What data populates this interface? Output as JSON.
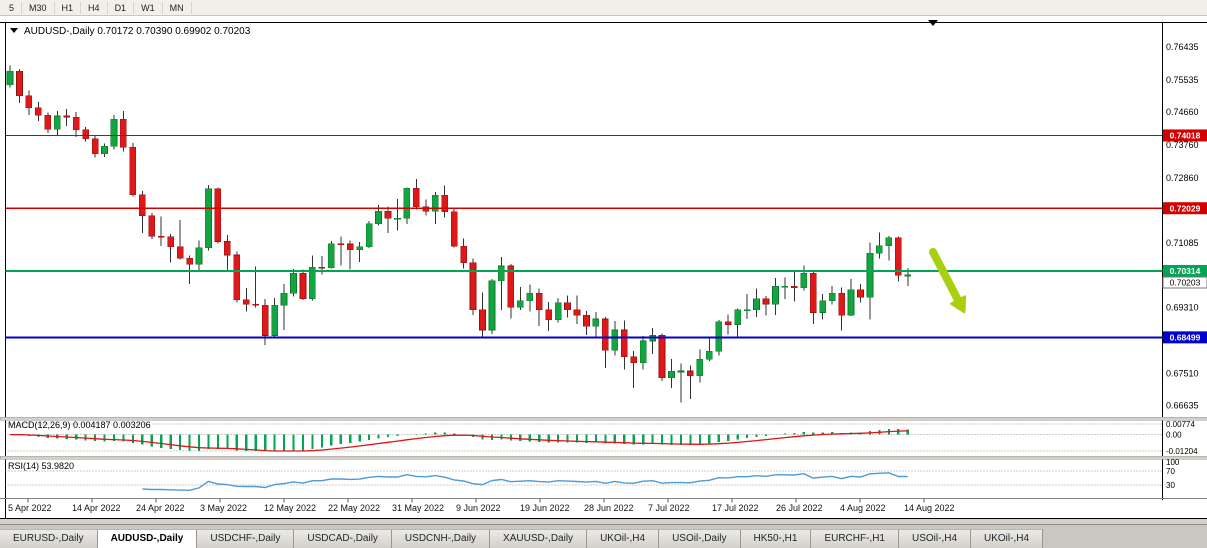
{
  "toolbar": {
    "timeframes": [
      "5",
      "M30",
      "H1",
      "H4",
      "D1",
      "W1",
      "MN"
    ]
  },
  "chart": {
    "title_display": "AUDUSD-,Daily 0.70172 0.70390 0.69902 0.70203",
    "symbol": "AUDUSD-,Daily",
    "open": "0.70172",
    "high": "0.70390",
    "low": "0.69902",
    "close": "0.70203"
  },
  "price_axis": {
    "labels": [
      "0.76435",
      "0.75535",
      "0.74660",
      "0.73760",
      "0.72860",
      "0.71085",
      "0.69310",
      "0.67510",
      "0.66635"
    ]
  },
  "hlines": [
    {
      "price": 0.74018,
      "label": "0.74018",
      "color": "#d40000",
      "width": 1.2
    },
    {
      "price": 0.72029,
      "label": "0.72029",
      "color": "#d40000",
      "width": 1.2
    },
    {
      "price": 0.70314,
      "label": "0.70314",
      "color": "#00a651",
      "width": 2.2
    },
    {
      "price": 0.68499,
      "label": "0.68499",
      "color": "#0000cc",
      "width": 2.2
    }
  ],
  "current_price": {
    "label": "0.70203",
    "price": 0.70203
  },
  "macd_panel": {
    "label_display": "MACD(12,26,9) 0.004187 0.003206",
    "name": "MACD",
    "params": "12,26,9",
    "macd_value": "0.004187",
    "signal_value": "0.003206",
    "axis_labels": [
      "0.00774",
      "0.00",
      "-0.01204"
    ],
    "scale_max": 0.00774,
    "scale_min": -0.01204,
    "histogram_color": "#00a651",
    "signal_color": "#e01515"
  },
  "rsi_panel": {
    "label_display": "RSI(14) 53.9820",
    "name": "RSI",
    "params": "14",
    "value": "53.9820",
    "axis_labels": [
      "100",
      "70",
      "30"
    ],
    "levels": [
      70,
      30
    ],
    "scale": [
      0,
      100
    ],
    "line_color": "#4f9bd5"
  },
  "annotations": {
    "arrow": {
      "type": "arrow",
      "direction": "down-right",
      "color": "#a8cf10"
    }
  },
  "tabs": {
    "items": [
      {
        "label": "EURUSD-,Daily",
        "active": false
      },
      {
        "label": "AUDUSD-,Daily",
        "active": true
      },
      {
        "label": "USDCHF-,Daily",
        "active": false
      },
      {
        "label": "USDCAD-,Daily",
        "active": false
      },
      {
        "label": "USDCNH-,Daily",
        "active": false
      },
      {
        "label": "XAUUSD-,Daily",
        "active": false
      },
      {
        "label": "UKOil-,H4",
        "active": false
      },
      {
        "label": "USOil-,Daily",
        "active": false
      },
      {
        "label": "HK50-,H1",
        "active": false
      },
      {
        "label": "EURCHF-,H1",
        "active": false
      },
      {
        "label": "USOil-,H4",
        "active": false
      },
      {
        "label": "UKOil-,H4",
        "active": false
      }
    ]
  },
  "chart_data": {
    "type": "candlestick",
    "symbol": "AUDUSD",
    "timeframe": "Daily",
    "ylim": [
      0.6635,
      0.769
    ],
    "x_labels": [
      "5 Apr 2022",
      "14 Apr 2022",
      "24 Apr 2022",
      "3 May 2022",
      "12 May 2022",
      "22 May 2022",
      "31 May 2022",
      "9 Jun 2022",
      "19 Jun 2022",
      "28 Jun 2022",
      "7 Jul 2022",
      "17 Jul 2022",
      "26 Jul 2022",
      "4 Aug 2022",
      "14 Aug 2022"
    ],
    "candles": [
      [
        0.754,
        0.7593,
        0.7533,
        0.7577
      ],
      [
        0.7577,
        0.7584,
        0.749,
        0.751
      ],
      [
        0.751,
        0.7524,
        0.7458,
        0.7478
      ],
      [
        0.7478,
        0.7493,
        0.7441,
        0.7457
      ],
      [
        0.7457,
        0.7464,
        0.7409,
        0.7419
      ],
      [
        0.7419,
        0.7469,
        0.74,
        0.7455
      ],
      [
        0.7455,
        0.7474,
        0.7427,
        0.7452
      ],
      [
        0.7452,
        0.7466,
        0.7398,
        0.7417
      ],
      [
        0.7417,
        0.7425,
        0.7385,
        0.7393
      ],
      [
        0.7393,
        0.74,
        0.7341,
        0.7352
      ],
      [
        0.7352,
        0.738,
        0.7343,
        0.7372
      ],
      [
        0.7372,
        0.7458,
        0.7364,
        0.7446
      ],
      [
        0.7446,
        0.7469,
        0.7358,
        0.7369
      ],
      [
        0.7369,
        0.7381,
        0.7235,
        0.724
      ],
      [
        0.724,
        0.725,
        0.7135,
        0.7182
      ],
      [
        0.7182,
        0.719,
        0.7119,
        0.7126
      ],
      [
        0.7126,
        0.718,
        0.71,
        0.7125
      ],
      [
        0.7125,
        0.7132,
        0.7055,
        0.7098
      ],
      [
        0.7098,
        0.7171,
        0.7063,
        0.7066
      ],
      [
        0.7066,
        0.7074,
        0.6996,
        0.705
      ],
      [
        0.705,
        0.7115,
        0.7029,
        0.7095
      ],
      [
        0.7095,
        0.7266,
        0.7087,
        0.7256
      ],
      [
        0.7256,
        0.7259,
        0.7106,
        0.7112
      ],
      [
        0.7112,
        0.713,
        0.7033,
        0.7075
      ],
      [
        0.7075,
        0.7084,
        0.6945,
        0.6953
      ],
      [
        0.6953,
        0.6985,
        0.692,
        0.694
      ],
      [
        0.694,
        0.7043,
        0.6931,
        0.6938
      ],
      [
        0.6938,
        0.6955,
        0.6829,
        0.6855
      ],
      [
        0.6855,
        0.6958,
        0.685,
        0.6938
      ],
      [
        0.6938,
        0.6996,
        0.687,
        0.697
      ],
      [
        0.697,
        0.7037,
        0.6962,
        0.7025
      ],
      [
        0.7025,
        0.7036,
        0.6952,
        0.6955
      ],
      [
        0.6955,
        0.7073,
        0.695,
        0.7042
      ],
      [
        0.7042,
        0.7072,
        0.7022,
        0.704
      ],
      [
        0.704,
        0.7113,
        0.7038,
        0.7106
      ],
      [
        0.7106,
        0.7126,
        0.7046,
        0.7105
      ],
      [
        0.7105,
        0.7115,
        0.7036,
        0.7089
      ],
      [
        0.7089,
        0.711,
        0.7056,
        0.7098
      ],
      [
        0.7098,
        0.7168,
        0.7094,
        0.716
      ],
      [
        0.716,
        0.7212,
        0.7155,
        0.7195
      ],
      [
        0.7195,
        0.7207,
        0.7135,
        0.7175
      ],
      [
        0.7175,
        0.7228,
        0.7142,
        0.7175
      ],
      [
        0.7175,
        0.7259,
        0.716,
        0.7257
      ],
      [
        0.7257,
        0.7283,
        0.72,
        0.7207
      ],
      [
        0.7207,
        0.7227,
        0.7183,
        0.7195
      ],
      [
        0.7195,
        0.7247,
        0.716,
        0.7238
      ],
      [
        0.7238,
        0.7265,
        0.7178,
        0.7193
      ],
      [
        0.7193,
        0.7205,
        0.7096,
        0.7099
      ],
      [
        0.7099,
        0.712,
        0.7038,
        0.7054
      ],
      [
        0.7054,
        0.7065,
        0.6911,
        0.6925
      ],
      [
        0.6925,
        0.6972,
        0.685,
        0.687
      ],
      [
        0.687,
        0.701,
        0.6859,
        0.7005
      ],
      [
        0.7005,
        0.7069,
        0.6925,
        0.7045
      ],
      [
        0.7045,
        0.705,
        0.6901,
        0.6932
      ],
      [
        0.6932,
        0.6988,
        0.6925,
        0.695
      ],
      [
        0.695,
        0.6995,
        0.6921,
        0.697
      ],
      [
        0.697,
        0.6984,
        0.6881,
        0.6925
      ],
      [
        0.6925,
        0.6947,
        0.6867,
        0.6898
      ],
      [
        0.6898,
        0.6958,
        0.689,
        0.6944
      ],
      [
        0.6944,
        0.6964,
        0.6904,
        0.6925
      ],
      [
        0.6925,
        0.6965,
        0.6887,
        0.691
      ],
      [
        0.691,
        0.6922,
        0.6856,
        0.688
      ],
      [
        0.688,
        0.6919,
        0.685,
        0.69
      ],
      [
        0.69,
        0.6906,
        0.6766,
        0.6815
      ],
      [
        0.6815,
        0.6895,
        0.68,
        0.687
      ],
      [
        0.687,
        0.6896,
        0.6762,
        0.6797
      ],
      [
        0.6797,
        0.6812,
        0.6711,
        0.678
      ],
      [
        0.678,
        0.6854,
        0.6762,
        0.684
      ],
      [
        0.684,
        0.6875,
        0.6805,
        0.6855
      ],
      [
        0.6855,
        0.686,
        0.6731,
        0.674
      ],
      [
        0.674,
        0.6791,
        0.6711,
        0.6757
      ],
      [
        0.6757,
        0.6779,
        0.6672,
        0.6758
      ],
      [
        0.6758,
        0.6773,
        0.6682,
        0.6745
      ],
      [
        0.6745,
        0.6817,
        0.6727,
        0.679
      ],
      [
        0.679,
        0.6848,
        0.6786,
        0.6812
      ],
      [
        0.6812,
        0.6898,
        0.68,
        0.6893
      ],
      [
        0.6893,
        0.6913,
        0.6858,
        0.6885
      ],
      [
        0.6885,
        0.6929,
        0.6849,
        0.6925
      ],
      [
        0.6925,
        0.6968,
        0.69,
        0.6925
      ],
      [
        0.6925,
        0.6983,
        0.6905,
        0.6955
      ],
      [
        0.6955,
        0.6963,
        0.691,
        0.694
      ],
      [
        0.694,
        0.7012,
        0.6911,
        0.699
      ],
      [
        0.699,
        0.7014,
        0.6955,
        0.699
      ],
      [
        0.699,
        0.7032,
        0.6948,
        0.6985
      ],
      [
        0.6985,
        0.7047,
        0.6978,
        0.7025
      ],
      [
        0.7025,
        0.7031,
        0.6886,
        0.6918
      ],
      [
        0.6918,
        0.6968,
        0.6899,
        0.695
      ],
      [
        0.695,
        0.699,
        0.694,
        0.697
      ],
      [
        0.697,
        0.6986,
        0.6869,
        0.691
      ],
      [
        0.691,
        0.7009,
        0.6908,
        0.698
      ],
      [
        0.698,
        0.6996,
        0.6945,
        0.696
      ],
      [
        0.696,
        0.7109,
        0.6899,
        0.708
      ],
      [
        0.708,
        0.7137,
        0.7066,
        0.71
      ],
      [
        0.71,
        0.7127,
        0.706,
        0.7122
      ],
      [
        0.7122,
        0.7125,
        0.7003,
        0.702
      ],
      [
        0.70172,
        0.7039,
        0.69902,
        0.70203
      ]
    ],
    "indicators": [
      {
        "name": "MACD",
        "params": "12,26,9",
        "display_values": [
          "0.004187",
          "0.003206"
        ]
      },
      {
        "name": "RSI",
        "params": "14",
        "display_value": "53.9820"
      }
    ]
  }
}
